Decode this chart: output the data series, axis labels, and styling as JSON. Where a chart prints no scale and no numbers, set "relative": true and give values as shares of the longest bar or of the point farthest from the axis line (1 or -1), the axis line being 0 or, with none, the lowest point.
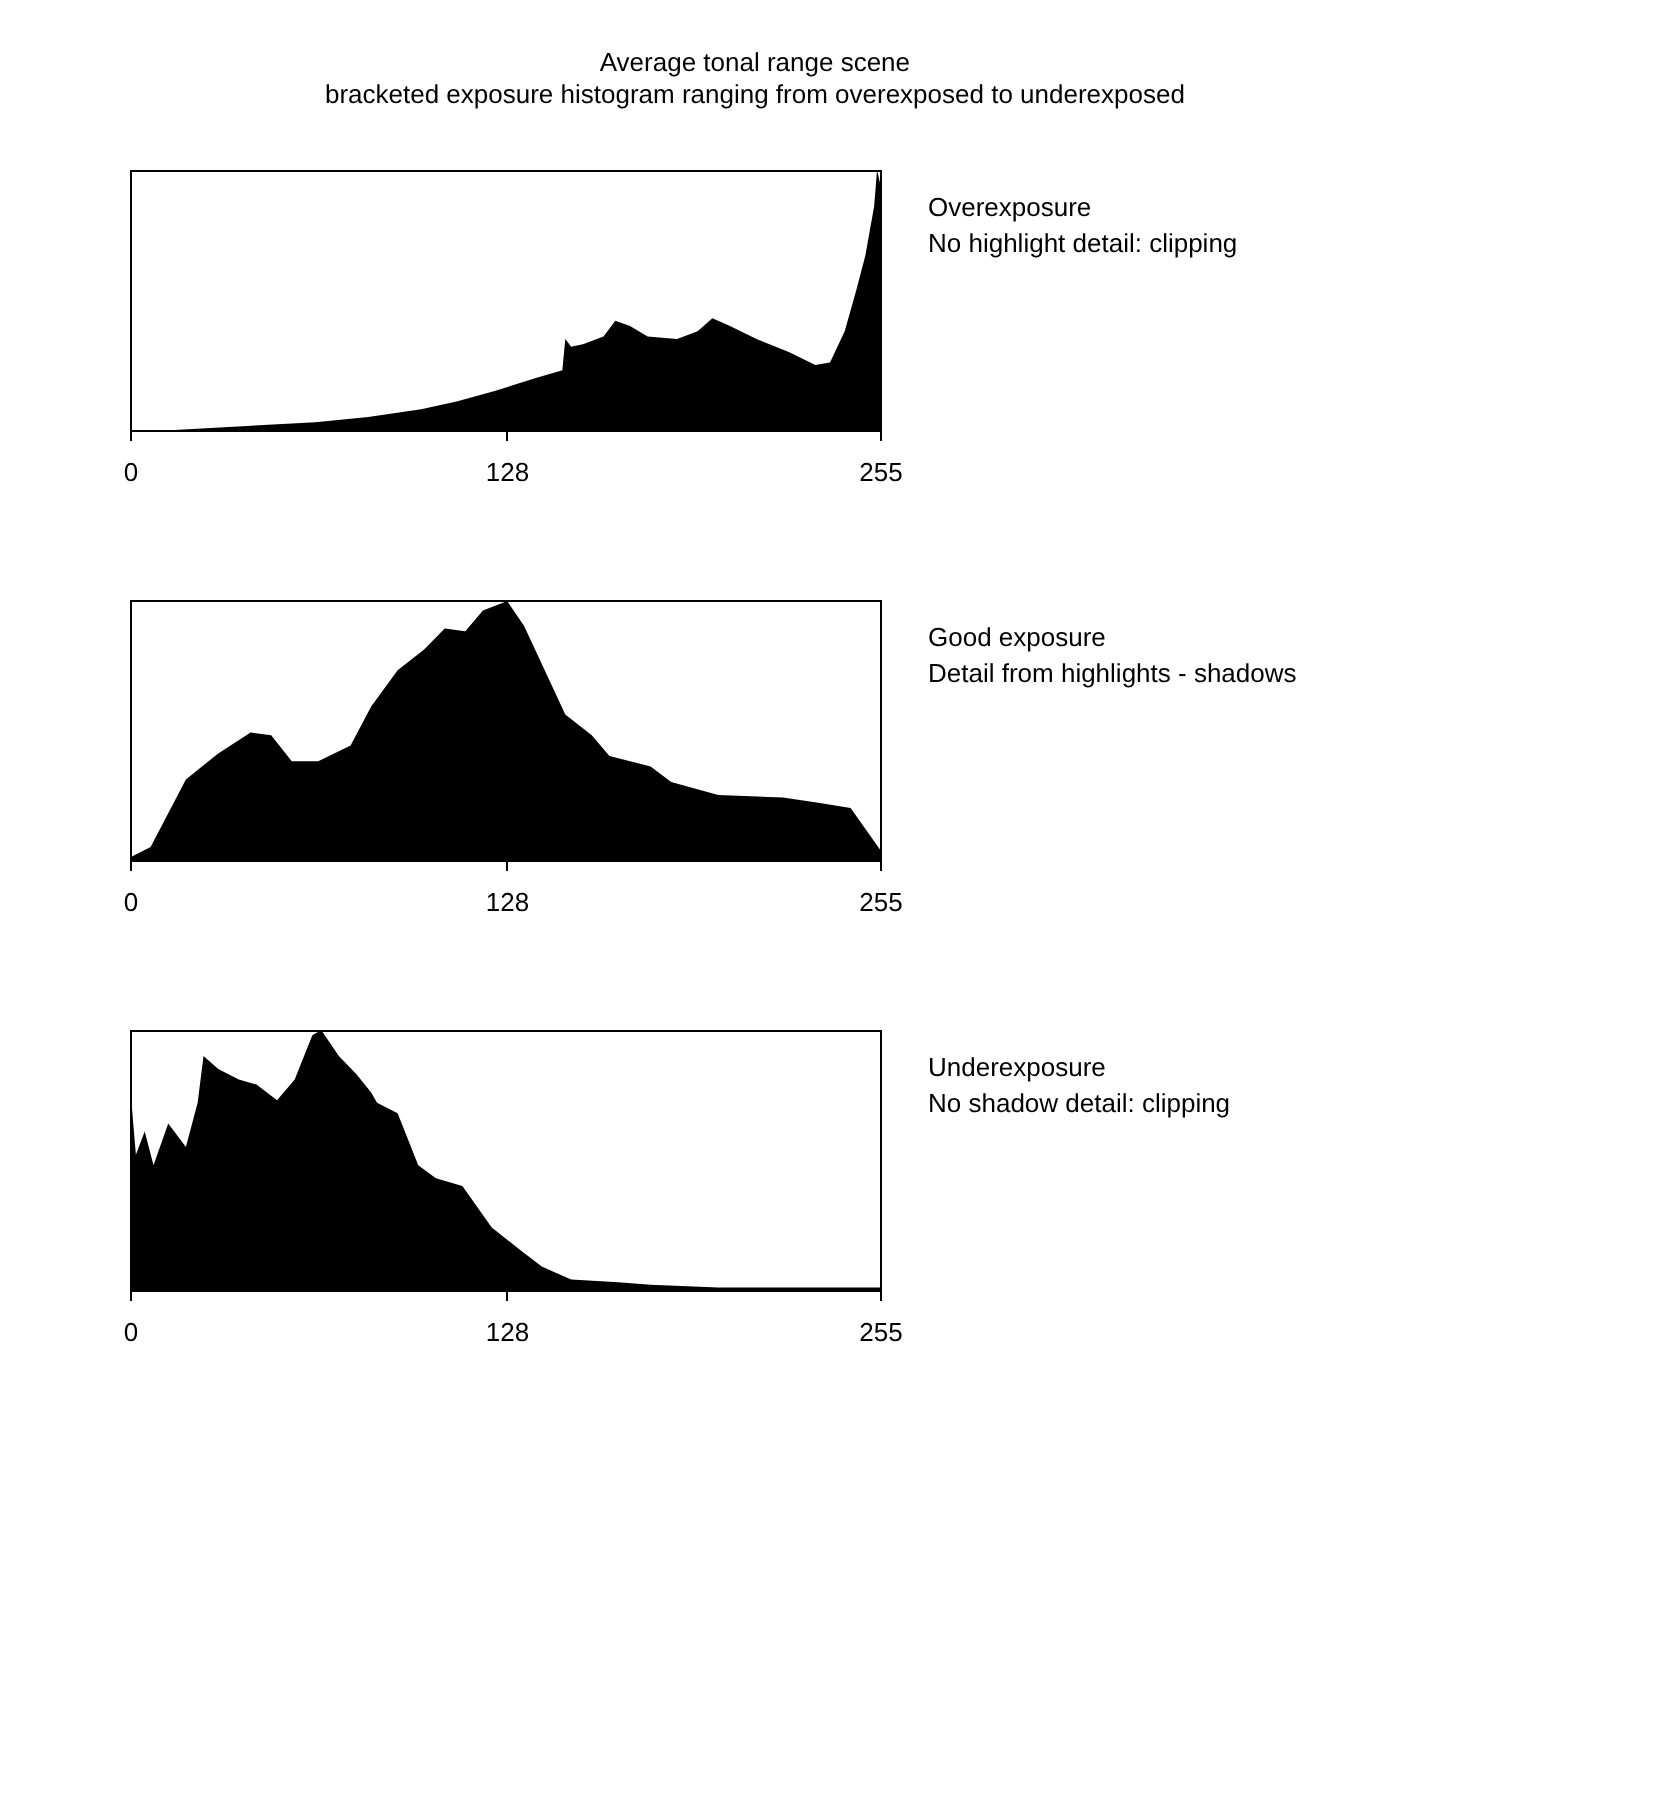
{
  "chart_data": [
    {
      "type": "area",
      "title": "Average tonal range scene",
      "subtitle": "bracketed exposure histogram ranging from overexposed to underexposed",
      "relative": true,
      "color": "#000000",
      "xlim": [
        0,
        255
      ],
      "xticks": [
        0,
        128,
        255
      ],
      "annotations": [
        "Overexposure",
        "No highlight detail: clipping"
      ],
      "x": [
        0,
        15,
        63,
        81,
        99,
        111,
        124,
        138,
        147,
        148,
        150,
        154,
        161,
        165,
        170,
        176,
        186,
        193,
        198,
        204,
        213,
        224,
        233,
        238,
        243,
        247,
        250,
        253,
        254,
        255
      ],
      "values": [
        0,
        0,
        0.03,
        0.05,
        0.08,
        0.11,
        0.15,
        0.2,
        0.23,
        0.35,
        0.32,
        0.33,
        0.36,
        0.42,
        0.4,
        0.36,
        0.35,
        0.38,
        0.43,
        0.4,
        0.35,
        0.3,
        0.25,
        0.26,
        0.38,
        0.54,
        0.67,
        0.86,
        1.0,
        0.95
      ]
    },
    {
      "type": "area",
      "relative": true,
      "color": "#000000",
      "xlim": [
        0,
        255
      ],
      "xticks": [
        0,
        128,
        255
      ],
      "annotations": [
        "Good exposure",
        "Detail from highlights - shadows"
      ],
      "x": [
        0,
        7,
        19,
        30,
        41,
        48,
        55,
        64,
        75,
        82,
        91,
        100,
        107,
        114,
        120,
        127,
        128,
        134,
        141,
        148,
        157,
        163,
        177,
        184,
        200,
        222,
        234,
        245,
        255
      ],
      "values": [
        0.01,
        0.05,
        0.31,
        0.41,
        0.49,
        0.48,
        0.38,
        0.38,
        0.44,
        0.59,
        0.73,
        0.81,
        0.89,
        0.88,
        0.96,
        0.99,
        1.0,
        0.9,
        0.73,
        0.56,
        0.48,
        0.4,
        0.36,
        0.3,
        0.25,
        0.24,
        0.22,
        0.2,
        0.04
      ]
    },
    {
      "type": "area",
      "relative": true,
      "color": "#000000",
      "xlim": [
        0,
        255
      ],
      "xticks": [
        0,
        128,
        255
      ],
      "annotations": [
        "Underexposure",
        "No shadow detail: clipping"
      ],
      "x": [
        0,
        2,
        5,
        8,
        13,
        19,
        23,
        25,
        30,
        37,
        43,
        50,
        56,
        62,
        65,
        71,
        77,
        82,
        84,
        91,
        98,
        104,
        113,
        123,
        132,
        140,
        150,
        166,
        177,
        200,
        255
      ],
      "values": [
        0.79,
        0.52,
        0.61,
        0.48,
        0.64,
        0.55,
        0.72,
        0.9,
        0.85,
        0.81,
        0.79,
        0.73,
        0.81,
        0.98,
        1.0,
        0.9,
        0.83,
        0.76,
        0.72,
        0.68,
        0.48,
        0.43,
        0.4,
        0.24,
        0.16,
        0.09,
        0.04,
        0.03,
        0.02,
        0.01,
        0.01
      ]
    }
  ]
}
